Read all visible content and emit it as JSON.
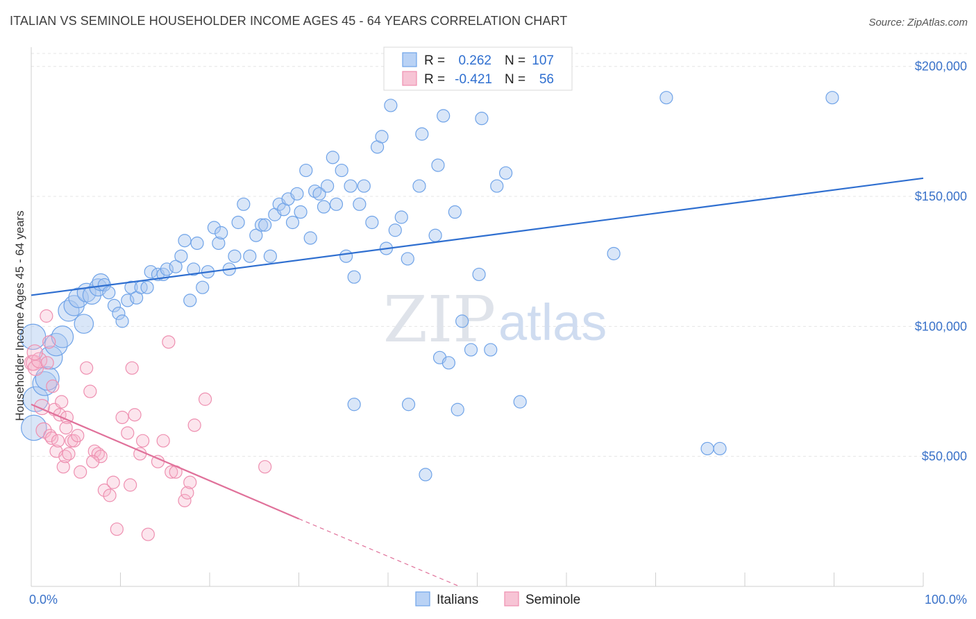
{
  "title": "ITALIAN VS SEMINOLE HOUSEHOLDER INCOME AGES 45 - 64 YEARS CORRELATION CHART",
  "source": "Source: ZipAtlas.com",
  "watermark": {
    "zip": "ZIP",
    "atlas": "atlas"
  },
  "legend": {
    "r_label": "R =",
    "n_label": "N =",
    "series": [
      {
        "name": "Italians",
        "r": "0.262",
        "n": "107",
        "color": "#6fa3e8",
        "fill": "#b9d2f5"
      },
      {
        "name": "Seminole",
        "r": "-0.421",
        "n": "56",
        "color": "#ee8fb0",
        "fill": "#f7c4d5"
      }
    ]
  },
  "chart_data": {
    "type": "scatter",
    "xlabel": "",
    "ylabel": "Householder Income Ages 45 - 64 years",
    "x_tick_labels": [
      "0.0%",
      "100.0%"
    ],
    "y_tick_labels": [
      "$50,000",
      "$100,000",
      "$150,000",
      "$200,000"
    ],
    "y_ticks": [
      50000,
      100000,
      150000,
      200000
    ],
    "xlim": [
      0,
      100
    ],
    "ylim": [
      0,
      205000
    ],
    "grid": true,
    "series": [
      {
        "name": "Italians",
        "color": "#6fa3e8",
        "trend": {
          "x": [
            0,
            100
          ],
          "y": [
            112000,
            157000
          ],
          "color": "#2f6fd0"
        },
        "points": [
          [
            0.3,
            61000
          ],
          [
            0.5,
            72000
          ],
          [
            1.5,
            78000
          ],
          [
            1.8,
            80000
          ],
          [
            2.2,
            88000
          ],
          [
            2.8,
            93000
          ],
          [
            3.5,
            96000
          ],
          [
            4.2,
            106000
          ],
          [
            4.8,
            108000
          ],
          [
            5.3,
            111000
          ],
          [
            5.9,
            101000
          ],
          [
            6.2,
            113000
          ],
          [
            6.8,
            112000
          ],
          [
            7.5,
            115000
          ],
          [
            7.8,
            117000
          ],
          [
            8.2,
            116000
          ],
          [
            8.7,
            113000
          ],
          [
            9.3,
            108000
          ],
          [
            9.8,
            105000
          ],
          [
            10.2,
            102000
          ],
          [
            10.8,
            110000
          ],
          [
            11.2,
            115000
          ],
          [
            11.8,
            111000
          ],
          [
            12.3,
            115000
          ],
          [
            13.0,
            115000
          ],
          [
            13.4,
            121000
          ],
          [
            14.2,
            120000
          ],
          [
            14.8,
            120000
          ],
          [
            15.2,
            122000
          ],
          [
            16.2,
            123000
          ],
          [
            16.8,
            127000
          ],
          [
            17.2,
            133000
          ],
          [
            17.8,
            110000
          ],
          [
            18.2,
            122000
          ],
          [
            18.6,
            132000
          ],
          [
            19.2,
            115000
          ],
          [
            19.8,
            121000
          ],
          [
            20.5,
            138000
          ],
          [
            21.0,
            132000
          ],
          [
            21.3,
            136000
          ],
          [
            22.2,
            122000
          ],
          [
            22.8,
            127000
          ],
          [
            23.2,
            140000
          ],
          [
            23.8,
            147000
          ],
          [
            24.5,
            127000
          ],
          [
            25.2,
            135000
          ],
          [
            25.8,
            139000
          ],
          [
            26.2,
            139000
          ],
          [
            26.8,
            127000
          ],
          [
            27.3,
            143000
          ],
          [
            27.8,
            147000
          ],
          [
            28.3,
            145000
          ],
          [
            28.8,
            149000
          ],
          [
            29.3,
            140000
          ],
          [
            29.8,
            151000
          ],
          [
            30.2,
            144000
          ],
          [
            30.8,
            160000
          ],
          [
            31.3,
            134000
          ],
          [
            31.8,
            152000
          ],
          [
            32.3,
            151000
          ],
          [
            32.8,
            146000
          ],
          [
            33.2,
            154000
          ],
          [
            33.8,
            165000
          ],
          [
            34.2,
            147000
          ],
          [
            34.8,
            160000
          ],
          [
            35.3,
            127000
          ],
          [
            35.8,
            154000
          ],
          [
            36.2,
            119000
          ],
          [
            36.8,
            147000
          ],
          [
            37.3,
            154000
          ],
          [
            38.2,
            140000
          ],
          [
            38.8,
            169000
          ],
          [
            39.3,
            173000
          ],
          [
            39.8,
            130000
          ],
          [
            40.3,
            185000
          ],
          [
            40.8,
            137000
          ],
          [
            41.5,
            142000
          ],
          [
            42.2,
            126000
          ],
          [
            42.3,
            70000
          ],
          [
            43.5,
            154000
          ],
          [
            43.8,
            174000
          ],
          [
            44.2,
            43000
          ],
          [
            45.3,
            135000
          ],
          [
            45.6,
            162000
          ],
          [
            45.8,
            88000
          ],
          [
            46.2,
            181000
          ],
          [
            46.8,
            86000
          ],
          [
            47.5,
            144000
          ],
          [
            47.8,
            68000
          ],
          [
            48.3,
            102000
          ],
          [
            49.3,
            91000
          ],
          [
            50.2,
            120000
          ],
          [
            50.5,
            180000
          ],
          [
            51.5,
            91000
          ],
          [
            52.2,
            154000
          ],
          [
            53.2,
            159000
          ],
          [
            54.8,
            71000
          ],
          [
            65.3,
            128000
          ],
          [
            71.2,
            188000
          ],
          [
            75.8,
            53000
          ],
          [
            77.2,
            53000
          ],
          [
            89.8,
            188000
          ],
          [
            0.2,
            96000
          ],
          [
            36.2,
            70000
          ]
        ]
      },
      {
        "name": "Seminole",
        "color": "#ee8fb0",
        "trend": {
          "x": [
            0,
            30
          ],
          "y": [
            70000,
            26000
          ],
          "color": "#e0719a",
          "dashed_to": [
            48,
            0
          ]
        },
        "points": [
          [
            0.1,
            86000
          ],
          [
            0.3,
            86000
          ],
          [
            0.5,
            84000
          ],
          [
            0.9,
            87000
          ],
          [
            1.2,
            69000
          ],
          [
            1.4,
            60000
          ],
          [
            1.7,
            104000
          ],
          [
            1.8,
            86000
          ],
          [
            2.0,
            94000
          ],
          [
            2.1,
            58000
          ],
          [
            2.3,
            57000
          ],
          [
            2.6,
            68000
          ],
          [
            2.8,
            52000
          ],
          [
            3.0,
            56000
          ],
          [
            3.2,
            66000
          ],
          [
            3.4,
            71000
          ],
          [
            3.6,
            46000
          ],
          [
            3.8,
            50000
          ],
          [
            4.0,
            65000
          ],
          [
            4.2,
            51000
          ],
          [
            4.5,
            56000
          ],
          [
            4.8,
            56000
          ],
          [
            5.2,
            58000
          ],
          [
            5.5,
            44000
          ],
          [
            6.2,
            84000
          ],
          [
            6.6,
            75000
          ],
          [
            7.1,
            52000
          ],
          [
            7.5,
            51000
          ],
          [
            7.8,
            50000
          ],
          [
            8.2,
            37000
          ],
          [
            8.8,
            35000
          ],
          [
            9.2,
            40000
          ],
          [
            9.6,
            22000
          ],
          [
            10.2,
            65000
          ],
          [
            10.8,
            59000
          ],
          [
            11.1,
            39000
          ],
          [
            11.3,
            84000
          ],
          [
            11.6,
            66000
          ],
          [
            12.2,
            51000
          ],
          [
            12.5,
            56000
          ],
          [
            13.1,
            20000
          ],
          [
            14.2,
            48000
          ],
          [
            14.8,
            56000
          ],
          [
            15.4,
            94000
          ],
          [
            15.7,
            44000
          ],
          [
            16.2,
            44000
          ],
          [
            17.2,
            33000
          ],
          [
            17.5,
            36000
          ],
          [
            17.8,
            40000
          ],
          [
            18.3,
            62000
          ],
          [
            19.5,
            72000
          ],
          [
            26.2,
            46000
          ],
          [
            0.4,
            90000
          ],
          [
            2.4,
            77000
          ],
          [
            6.9,
            48000
          ],
          [
            3.9,
            61000
          ]
        ]
      }
    ]
  }
}
